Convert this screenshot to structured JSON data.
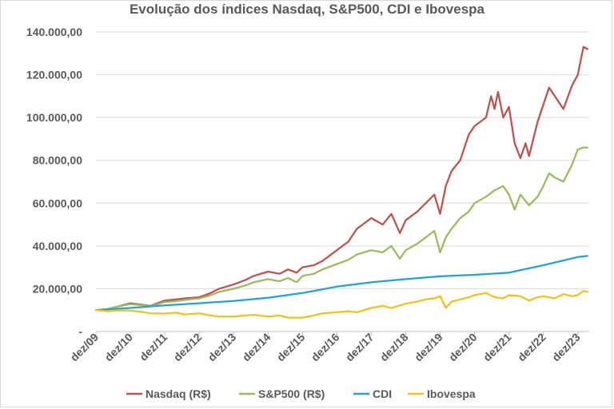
{
  "chart_data": {
    "type": "line",
    "title": "Evolução dos índices Nasdaq, S&P500, CDI e Ibovespa",
    "xlabel": "",
    "ylabel": "",
    "ylim": [
      0,
      140000
    ],
    "ytick_values": [
      0,
      20000,
      40000,
      60000,
      80000,
      100000,
      120000,
      140000
    ],
    "ytick_labels": [
      "-",
      "20.000,00",
      "40.000,00",
      "60.000,00",
      "80.000,00",
      "100.000,00",
      "120.000,00",
      "140.000,00"
    ],
    "xtick_values": [
      2009.917,
      2010.917,
      2011.917,
      2012.917,
      2013.917,
      2014.917,
      2015.917,
      2016.917,
      2017.917,
      2018.917,
      2019.917,
      2020.917,
      2021.917,
      2022.917,
      2023.917
    ],
    "xtick_labels": [
      "dez/09",
      "dez/10",
      "dez/11",
      "dez/12",
      "dez/13",
      "dez/14",
      "dez/15",
      "dez/16",
      "dez/17",
      "dez/18",
      "dez/19",
      "dez/20",
      "dez/21",
      "dez/22",
      "dez/23"
    ],
    "xlim": [
      2009.917,
      2024.25
    ],
    "grid": "horizontal",
    "legend": "bottom",
    "series": [
      {
        "name": "Nasdaq (R$)",
        "color": "#c0504d",
        "x": [
          2009.917,
          2010.25,
          2010.5,
          2010.75,
          2010.917,
          2011.25,
          2011.5,
          2011.75,
          2011.917,
          2012.25,
          2012.5,
          2012.917,
          2013.25,
          2013.5,
          2013.917,
          2014.25,
          2014.5,
          2014.917,
          2015.25,
          2015.5,
          2015.75,
          2015.917,
          2016.25,
          2016.5,
          2016.917,
          2017.25,
          2017.5,
          2017.917,
          2018.25,
          2018.5,
          2018.75,
          2018.917,
          2019.25,
          2019.5,
          2019.75,
          2019.917,
          2020.083,
          2020.25,
          2020.5,
          2020.75,
          2020.917,
          2021.25,
          2021.4,
          2021.5,
          2021.6,
          2021.75,
          2021.917,
          2022.083,
          2022.25,
          2022.4,
          2022.5,
          2022.75,
          2022.917,
          2023.083,
          2023.25,
          2023.5,
          2023.75,
          2023.917,
          2024.083,
          2024.2
        ],
        "y": [
          10000,
          10500,
          11500,
          12500,
          13200,
          12500,
          12000,
          13500,
          14500,
          15000,
          15500,
          16000,
          18000,
          20000,
          22000,
          24000,
          26000,
          28000,
          27000,
          29000,
          27500,
          30000,
          31000,
          33000,
          38000,
          42000,
          48000,
          53000,
          50000,
          55000,
          46000,
          52000,
          56000,
          60000,
          64000,
          55000,
          68000,
          75000,
          80000,
          92000,
          96000,
          100000,
          110000,
          104000,
          112000,
          100000,
          105000,
          88000,
          81000,
          88000,
          82000,
          98000,
          106000,
          114000,
          110000,
          104000,
          115000,
          120000,
          133000,
          132000
        ]
      },
      {
        "name": "S&P500 (R$)",
        "color": "#9bbb59",
        "x": [
          2009.917,
          2010.25,
          2010.5,
          2010.75,
          2010.917,
          2011.25,
          2011.5,
          2011.75,
          2011.917,
          2012.25,
          2012.5,
          2012.917,
          2013.25,
          2013.5,
          2013.917,
          2014.25,
          2014.5,
          2014.917,
          2015.25,
          2015.5,
          2015.75,
          2015.917,
          2016.25,
          2016.5,
          2016.917,
          2017.25,
          2017.5,
          2017.917,
          2018.25,
          2018.5,
          2018.75,
          2018.917,
          2019.25,
          2019.5,
          2019.75,
          2019.917,
          2020.083,
          2020.25,
          2020.5,
          2020.75,
          2020.917,
          2021.25,
          2021.5,
          2021.75,
          2021.917,
          2022.083,
          2022.25,
          2022.5,
          2022.75,
          2022.917,
          2023.083,
          2023.25,
          2023.5,
          2023.75,
          2023.917,
          2024.083,
          2024.2
        ],
        "y": [
          10000,
          10500,
          11500,
          12300,
          12800,
          12300,
          11800,
          13000,
          13800,
          14200,
          14800,
          15500,
          17000,
          18500,
          20000,
          21500,
          23000,
          24500,
          23500,
          25000,
          23000,
          26000,
          27000,
          29000,
          31500,
          33500,
          36000,
          38000,
          37000,
          40000,
          34000,
          38000,
          41000,
          44000,
          47000,
          37000,
          44000,
          48000,
          53000,
          56000,
          60000,
          63000,
          66000,
          68000,
          64000,
          57000,
          64000,
          59000,
          63000,
          68000,
          74000,
          72000,
          70000,
          78000,
          85000,
          86000,
          86000
        ]
      },
      {
        "name": "CDI",
        "color": "#1ea3dc",
        "x": [
          2009.917,
          2010.917,
          2011.917,
          2012.917,
          2013.917,
          2014.917,
          2015.917,
          2016.917,
          2017.917,
          2018.917,
          2019.917,
          2020.917,
          2021.917,
          2022.917,
          2023.917,
          2024.2
        ],
        "y": [
          10000,
          11000,
          12200,
          13200,
          14300,
          15800,
          18000,
          21000,
          23000,
          24500,
          25800,
          26500,
          27500,
          31000,
          34800,
          35300
        ]
      },
      {
        "name": "Ibovespa",
        "color": "#f2c314",
        "x": [
          2009.917,
          2010.25,
          2010.5,
          2010.917,
          2011.25,
          2011.5,
          2011.917,
          2012.25,
          2012.5,
          2012.917,
          2013.25,
          2013.5,
          2013.917,
          2014.25,
          2014.5,
          2014.917,
          2015.25,
          2015.5,
          2015.917,
          2016.25,
          2016.5,
          2016.917,
          2017.25,
          2017.5,
          2017.917,
          2018.25,
          2018.5,
          2018.917,
          2019.25,
          2019.5,
          2019.75,
          2019.917,
          2020.083,
          2020.25,
          2020.5,
          2020.75,
          2020.917,
          2021.25,
          2021.5,
          2021.75,
          2021.917,
          2022.25,
          2022.5,
          2022.75,
          2022.917,
          2023.25,
          2023.5,
          2023.75,
          2023.917,
          2024.083,
          2024.2
        ],
        "y": [
          10000,
          9500,
          9800,
          9800,
          9200,
          8500,
          8400,
          8800,
          8000,
          8500,
          7500,
          7000,
          7000,
          7500,
          7800,
          7000,
          7500,
          6500,
          6500,
          7500,
          8500,
          9000,
          9500,
          9000,
          11000,
          12000,
          11000,
          13000,
          14000,
          15000,
          15500,
          16500,
          11000,
          14000,
          15000,
          16000,
          17000,
          18000,
          16000,
          15500,
          17000,
          16500,
          14500,
          16000,
          16500,
          15500,
          17500,
          16500,
          17000,
          19000,
          18500
        ]
      }
    ]
  }
}
